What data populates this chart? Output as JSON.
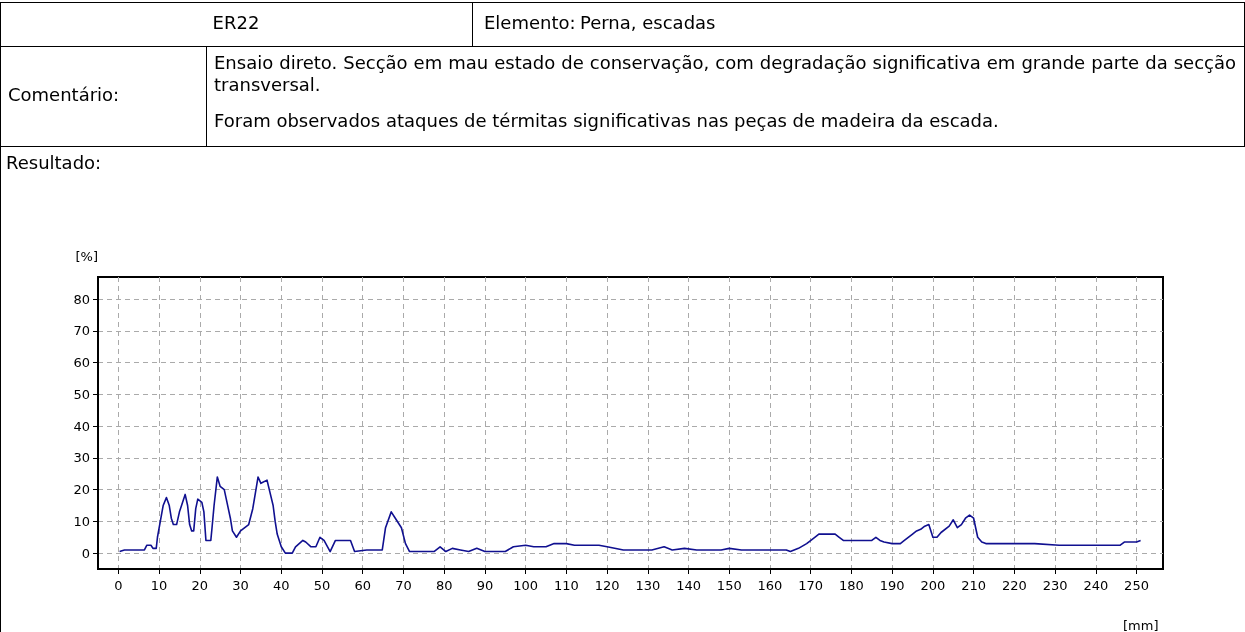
{
  "chart_data": {
    "type": "line",
    "title": "ER22",
    "annotations": [
      "Elemento:",
      "Perna, escadas",
      "Comentário:",
      "Ensaio direto. Secção em mau estado de conservação, com degradação significativa em grande parte da secção transversal.",
      "Foram observados ataques de térmitas significativas nas peças de madeira da escada.",
      "Resultado:"
    ],
    "xlabel": "[mm]",
    "ylabel": "[%]",
    "xlim": [
      -5,
      256.5
    ],
    "xticks": [
      0,
      10,
      20,
      30,
      40,
      50,
      60,
      70,
      80,
      90,
      100,
      110,
      120,
      130,
      140,
      150,
      160,
      170,
      180,
      190,
      200,
      210,
      220,
      230,
      240,
      250
    ],
    "ylim": [
      -5,
      87
    ],
    "yticks": [
      0,
      10,
      20,
      30,
      40,
      50,
      60,
      70,
      80
    ],
    "grid": true,
    "marker": "none",
    "series": [
      {
        "color": "#101090",
        "x": [
          0.3,
          1.5,
          6.4,
          7,
          8,
          8.5,
          9.3,
          9.6,
          10.3,
          11,
          11.8,
          12.5,
          13,
          13.5,
          14.3,
          15,
          16.4,
          17,
          17.5,
          18,
          18.5,
          19,
          19.5,
          20.5,
          21,
          21.5,
          22.7,
          23,
          23.5,
          24.3,
          25,
          26,
          26.5,
          27.5,
          28,
          29,
          30,
          32,
          33,
          34.3,
          35,
          36.5,
          38,
          38.5,
          39,
          40,
          41,
          42.7,
          43.5,
          45.3,
          46,
          47.3,
          48.5,
          49.5,
          50.5,
          52,
          53.3,
          57,
          58,
          61,
          64.8,
          65.6,
          67,
          68,
          69.5,
          70.5,
          71.5,
          77.5,
          79,
          80.4,
          82,
          84,
          86,
          88,
          90,
          95,
          97,
          100,
          102,
          105,
          107,
          110,
          112,
          118,
          120,
          124,
          131,
          134,
          136,
          139,
          142,
          148,
          150,
          153,
          164,
          165,
          167,
          169,
          171,
          172,
          176,
          177,
          178,
          185,
          186,
          187,
          188,
          190,
          192,
          193,
          195,
          196,
          197,
          198,
          199,
          200,
          201,
          202,
          204,
          205,
          206,
          207,
          208,
          209,
          210,
          211,
          212,
          213,
          225,
          231,
          246,
          247,
          250,
          251
        ],
        "values": [
          0.5,
          1,
          1,
          2.5,
          2.5,
          1.5,
          1.5,
          5,
          10,
          15,
          17.5,
          15,
          11,
          9,
          9,
          13,
          18.5,
          15,
          9,
          7,
          7,
          14,
          17,
          16,
          13,
          4,
          4,
          8,
          15,
          24,
          21,
          20,
          17,
          11,
          7,
          5,
          7,
          9,
          14,
          24,
          22,
          23,
          15,
          10,
          6,
          2,
          0,
          0,
          2,
          4,
          3.5,
          2,
          2,
          5,
          4,
          0.5,
          4,
          4,
          0.5,
          1,
          1,
          8,
          13,
          11,
          8,
          3,
          0.5,
          0.5,
          2,
          0.5,
          1.5,
          1,
          0.5,
          1.5,
          0.5,
          0.5,
          2,
          2.5,
          2,
          2,
          3,
          3,
          2.5,
          2.5,
          2,
          1,
          1,
          2,
          1,
          1.5,
          1,
          1,
          1.5,
          1,
          1,
          0.5,
          1.5,
          3,
          5,
          6,
          6,
          5,
          4,
          4,
          5,
          4,
          3.5,
          3,
          3,
          4,
          6,
          7,
          7.5,
          8.5,
          9,
          5,
          5,
          6.5,
          8.5,
          10.5,
          8,
          9,
          11,
          12,
          11,
          5,
          3.5,
          3,
          3,
          2.5,
          2.5,
          3.5,
          3.5,
          4
        ]
      }
    ]
  }
}
